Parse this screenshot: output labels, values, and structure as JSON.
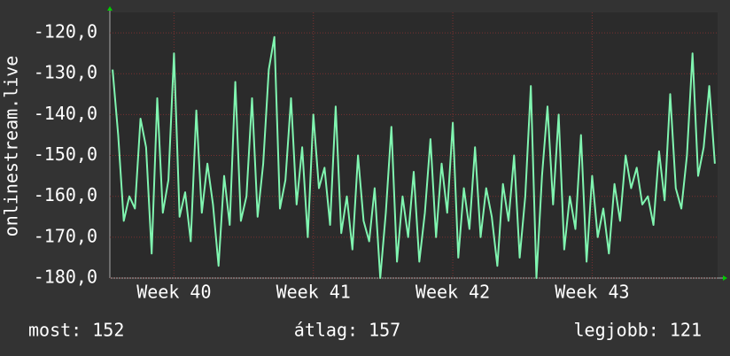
{
  "chart_data": {
    "type": "line",
    "y_label": "onlinestream.live",
    "x": [
      39.56,
      39.6,
      39.64,
      39.68,
      39.72,
      39.76,
      39.8,
      39.84,
      39.88,
      39.92,
      39.96,
      40.0,
      40.04,
      40.08,
      40.12,
      40.16,
      40.2,
      40.24,
      40.28,
      40.32,
      40.36,
      40.4,
      40.44,
      40.48,
      40.52,
      40.56,
      40.6,
      40.64,
      40.68,
      40.72,
      40.76,
      40.8,
      40.84,
      40.88,
      40.92,
      40.96,
      41.0,
      41.04,
      41.08,
      41.12,
      41.16,
      41.2,
      41.24,
      41.28,
      41.32,
      41.36,
      41.4,
      41.44,
      41.48,
      41.52,
      41.56,
      41.6,
      41.64,
      41.68,
      41.72,
      41.76,
      41.8,
      41.84,
      41.88,
      41.92,
      41.96,
      42.0,
      42.04,
      42.08,
      42.12,
      42.16,
      42.2,
      42.24,
      42.28,
      42.32,
      42.36,
      42.4,
      42.44,
      42.48,
      42.52,
      42.56,
      42.6,
      42.64,
      42.68,
      42.72,
      42.76,
      42.8,
      42.84,
      42.88,
      42.92,
      42.96,
      43.0,
      43.04,
      43.08,
      43.12,
      43.16,
      43.2,
      43.24,
      43.28,
      43.32,
      43.36,
      43.4,
      43.44,
      43.48,
      43.52,
      43.56,
      43.6,
      43.64,
      43.68,
      43.72,
      43.76,
      43.8,
      43.84,
      43.88
    ],
    "series": [
      {
        "color": "#80f5b0",
        "values": [
          -129,
          -145,
          -166,
          -160,
          -163,
          -141,
          -148,
          -174,
          -136,
          -164,
          -156,
          -125,
          -165,
          -159,
          -171,
          -139,
          -164,
          -152,
          -162,
          -177,
          -155,
          -167,
          -132,
          -166,
          -160,
          -136,
          -165,
          -152,
          -129,
          -121,
          -163,
          -156,
          -136,
          -162,
          -148,
          -170,
          -140,
          -158,
          -153,
          -167,
          -138,
          -169,
          -160,
          -173,
          -150,
          -166,
          -171,
          -158,
          -180,
          -164,
          -143,
          -176,
          -160,
          -170,
          -154,
          -176,
          -164,
          -146,
          -170,
          -152,
          -164,
          -142,
          -175,
          -158,
          -168,
          -148,
          -170,
          -158,
          -165,
          -177,
          -157,
          -166,
          -150,
          -175,
          -160,
          -133,
          -180,
          -155,
          -138,
          -162,
          -140,
          -173,
          -160,
          -168,
          -145,
          -176,
          -155,
          -170,
          -163,
          -174,
          -157,
          -166,
          -150,
          -158,
          -153,
          -162,
          -160,
          -167,
          -149,
          -161,
          -135,
          -158,
          -163,
          -150,
          -125,
          -155,
          -148,
          -133,
          -152
        ]
      }
    ],
    "xlim": [
      39.54,
      43.9
    ],
    "xticks": [
      {
        "value": 40,
        "label": "Week 40"
      },
      {
        "value": 41,
        "label": "Week 41"
      },
      {
        "value": 42,
        "label": "Week 42"
      },
      {
        "value": 43,
        "label": "Week 43"
      }
    ],
    "ylim": [
      -180,
      -115
    ],
    "yticks": [
      {
        "value": -180,
        "label": "-180,0"
      },
      {
        "value": -170,
        "label": "-170,0"
      },
      {
        "value": -160,
        "label": "-160,0"
      },
      {
        "value": -150,
        "label": "-150,0"
      },
      {
        "value": -140,
        "label": "-140,0"
      },
      {
        "value": -130,
        "label": "-130,0"
      },
      {
        "value": -120,
        "label": "-120,0"
      }
    ],
    "grid": true,
    "stats": [
      "most: 152",
      "átlag: 157",
      "legjobb: 121"
    ]
  }
}
